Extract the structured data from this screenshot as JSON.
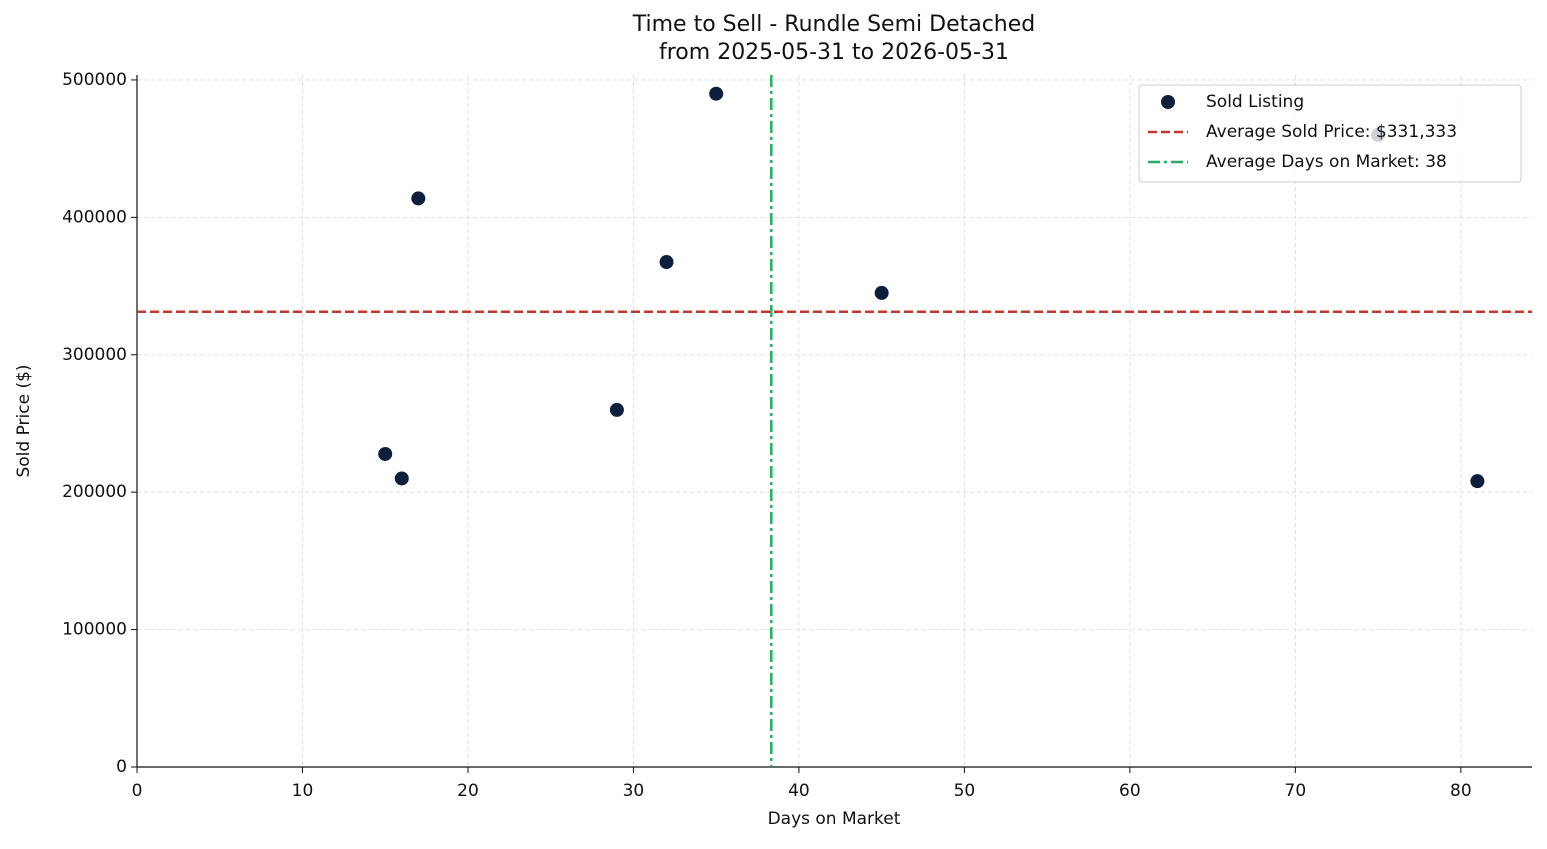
{
  "chart_data": {
    "type": "scatter",
    "title": "Time to Sell - Rundle Semi Detached",
    "subtitle": "from 2025-05-31 to 2026-05-31",
    "x_label": "Days on Market",
    "y_label": "Sold Price ($)",
    "series": [
      {
        "name": "Sold Listing",
        "color": "#0d1f3c",
        "x": [
          15,
          16,
          17,
          29,
          32,
          35,
          45,
          75,
          81
        ],
        "values": [
          227800,
          210000,
          413800,
          259900,
          367500,
          490000,
          345000,
          460000,
          208000
        ]
      }
    ],
    "hline": {
      "label": "Average Sold Price: $331,333",
      "value": 331333,
      "color": "#c0392b"
    },
    "vline": {
      "label": "Average Days on Market: 38",
      "value": 38.33,
      "color": "#27ae60"
    },
    "xlim": [
      0,
      84.3
    ],
    "xticks": [
      0,
      10,
      20,
      30,
      40,
      50,
      60,
      70,
      80
    ],
    "ylim": [
      0,
      503600
    ],
    "yticks": [
      0,
      100000,
      200000,
      300000,
      400000,
      500000
    ],
    "grid": true,
    "legend": "upper right"
  }
}
